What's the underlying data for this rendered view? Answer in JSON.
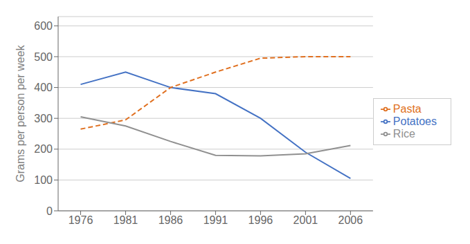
{
  "chart_data": {
    "type": "line",
    "x": [
      1976,
      1981,
      1986,
      1991,
      1996,
      2001,
      2006
    ],
    "xlim": [
      1973.5,
      2008.5
    ],
    "xticks": [
      1976,
      1981,
      1986,
      1991,
      1996,
      2001,
      2006
    ],
    "ylim": [
      0,
      630
    ],
    "yticks": [
      0,
      100,
      200,
      300,
      400,
      500,
      600
    ],
    "ylabel": "Grams per person per week",
    "grid": true,
    "legend": "right",
    "series": [
      {
        "name": "Potatoes",
        "color": "#4472C4",
        "line_style": "solid",
        "values": [
          410,
          450,
          400,
          380,
          300,
          190,
          105
        ]
      },
      {
        "name": "Pasta",
        "color": "#E07020",
        "line_style": "dashed",
        "values": [
          265,
          295,
          400,
          450,
          495,
          500,
          500
        ]
      },
      {
        "name": "Rice",
        "color": "#909090",
        "line_style": "solid",
        "values": [
          305,
          275,
          225,
          180,
          178,
          185,
          212
        ]
      }
    ]
  }
}
